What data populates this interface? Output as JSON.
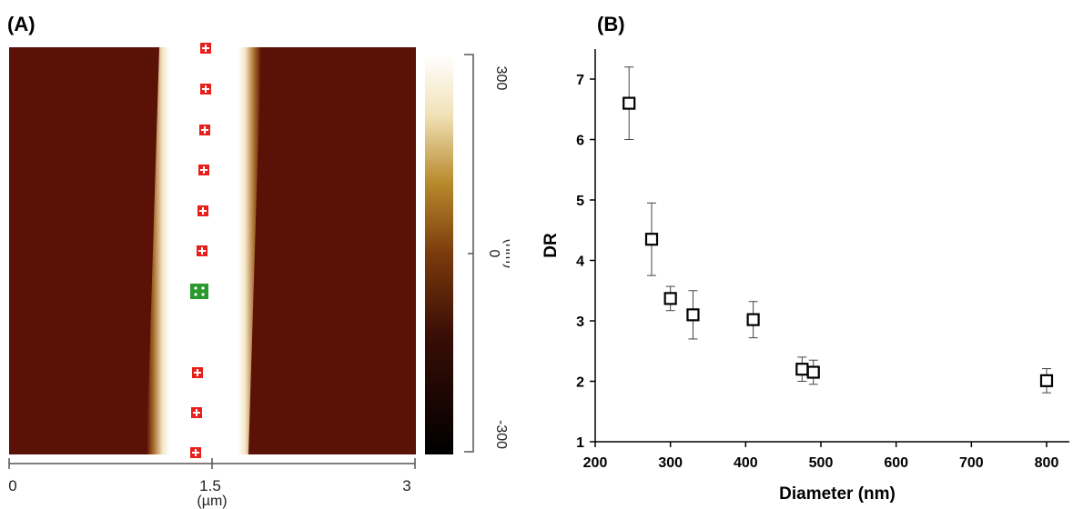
{
  "panel_a": {
    "label": "(A)",
    "x_ticks": [
      "0",
      "1.5",
      "3"
    ],
    "x_unit": "(µm)",
    "colorbar_ticks": [
      "300",
      "0",
      "-300"
    ],
    "colorbar_unit": "(nm)",
    "colors": {
      "background": "#5a1106",
      "wire": "#ffffff",
      "marker_red": "#e8201c",
      "marker_green": "#2a9a2e"
    }
  },
  "panel_b": {
    "label": "(B)"
  },
  "chart_data": {
    "type": "scatter",
    "title": "",
    "xlabel": "Diameter (nm)",
    "ylabel": "DR",
    "xlim": [
      200,
      800
    ],
    "ylim": [
      1,
      7.5
    ],
    "xticks": [
      200,
      300,
      400,
      500,
      600,
      700,
      800
    ],
    "yticks": [
      1,
      2,
      3,
      4,
      5,
      6,
      7
    ],
    "marker": "open-square",
    "series": [
      {
        "points": [
          {
            "x": 245,
            "y": 6.6,
            "err": 0.6
          },
          {
            "x": 275,
            "y": 4.35,
            "err": 0.6
          },
          {
            "x": 300,
            "y": 3.37,
            "err": 0.2
          },
          {
            "x": 330,
            "y": 3.1,
            "err": 0.4
          },
          {
            "x": 410,
            "y": 3.02,
            "err": 0.3
          },
          {
            "x": 475,
            "y": 2.2,
            "err": 0.2
          },
          {
            "x": 490,
            "y": 2.15,
            "err": 0.2
          },
          {
            "x": 800,
            "y": 2.01,
            "err": 0.2
          }
        ]
      }
    ]
  }
}
